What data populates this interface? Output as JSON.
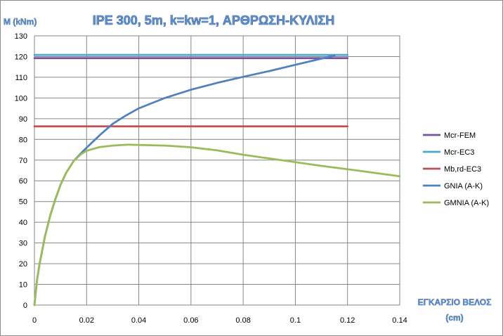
{
  "chart_data": {
    "type": "line",
    "title": "IPE 300, 5m, k=kw=1, ΑΡΘΡΩΣΗ-ΚΥΛΙΣΗ",
    "ylabel": "M (kNm)",
    "xlabel_line1": "ΕΓΚΑΡΣΙΟ ΒΕΛΟΣ",
    "xlabel_line2": "(cm)",
    "xlim": [
      0,
      0.14
    ],
    "ylim": [
      0,
      130
    ],
    "x_ticks": [
      "0",
      "0.02",
      "0.04",
      "0.06",
      "0.08",
      "0.1",
      "0.12",
      "0.14"
    ],
    "y_ticks": [
      "0",
      "10",
      "20",
      "30",
      "40",
      "50",
      "60",
      "70",
      "80",
      "90",
      "100",
      "110",
      "120",
      "130"
    ],
    "grid": true,
    "legend_position": "right",
    "series": [
      {
        "name": "Mcr-FEM",
        "color": "#7b4f9d",
        "x": [
          0,
          0.12
        ],
        "y": [
          119.2,
          119.2
        ]
      },
      {
        "name": "Mcr-EC3",
        "color": "#4bacc6",
        "x": [
          0,
          0.12
        ],
        "y": [
          120.8,
          120.8
        ]
      },
      {
        "name": "Mb,rd-EC3",
        "color": "#c0504d",
        "x": [
          0,
          0.12
        ],
        "y": [
          86.3,
          86.3
        ]
      },
      {
        "name": "GNIA (A-K)",
        "color": "#4f81bd",
        "x": [
          0,
          0.001,
          0.002,
          0.004,
          0.006,
          0.008,
          0.01,
          0.012,
          0.015,
          0.018,
          0.02,
          0.025,
          0.03,
          0.035,
          0.04,
          0.05,
          0.06,
          0.07,
          0.08,
          0.09,
          0.1,
          0.11,
          0.115
        ],
        "y": [
          0,
          12,
          20,
          33,
          43,
          51,
          58,
          63.5,
          69.5,
          73.5,
          76,
          82,
          87.5,
          91.5,
          95,
          100,
          104,
          107.3,
          110.2,
          113,
          116,
          119,
          120.5
        ]
      },
      {
        "name": "GMNIA  (A-K)",
        "color": "#9bbb59",
        "x": [
          0,
          0.001,
          0.002,
          0.004,
          0.006,
          0.008,
          0.01,
          0.012,
          0.015,
          0.018,
          0.02,
          0.025,
          0.03,
          0.036,
          0.04,
          0.05,
          0.06,
          0.07,
          0.08,
          0.09,
          0.1,
          0.11,
          0.12,
          0.13,
          0.14
        ],
        "y": [
          0,
          12,
          20,
          33,
          43,
          51,
          58,
          63.5,
          69.5,
          73,
          74.5,
          76.3,
          77,
          77.5,
          77.3,
          77,
          76.2,
          74.7,
          72.6,
          70.8,
          69,
          67.2,
          65.6,
          63.9,
          62.2
        ]
      }
    ]
  }
}
